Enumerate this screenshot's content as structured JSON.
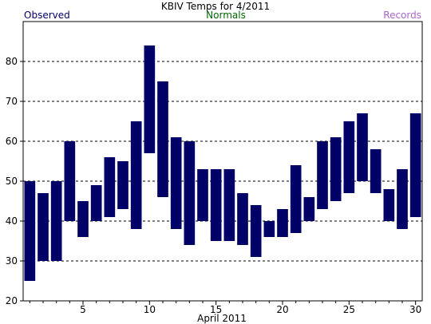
{
  "chart_data": {
    "type": "bar",
    "title": "KBIV Temps for 4/2011",
    "legend": [
      {
        "label": "Observed",
        "color": "#000066",
        "position": "top-left"
      },
      {
        "label": "Normals",
        "color": "#006600",
        "position": "top-center"
      },
      {
        "label": "Records",
        "color": "#aa66cc",
        "position": "top-right"
      }
    ],
    "xlabel": "April 2011",
    "ylabel": "",
    "xlim": [
      0.5,
      30.5
    ],
    "ylim": [
      20,
      90
    ],
    "x_ticks": [
      5,
      10,
      15,
      20,
      25,
      30
    ],
    "y_ticks": [
      20,
      30,
      40,
      50,
      60,
      70,
      80
    ],
    "grid": "horizontal dashed at 30-80",
    "bar_color": "#000066",
    "series": [
      {
        "days": [
          1,
          2,
          3,
          4,
          5,
          6,
          7,
          8,
          9,
          10,
          11,
          12,
          13,
          14,
          15,
          16,
          17,
          18,
          19,
          20,
          21,
          22,
          23,
          24,
          25,
          26,
          27,
          28,
          29,
          30
        ],
        "low": [
          25,
          30,
          30,
          40,
          36,
          40,
          41,
          43,
          38,
          57,
          46,
          38,
          34,
          40,
          35,
          35,
          34,
          31,
          36,
          36,
          37,
          40,
          43,
          45,
          47,
          50,
          47,
          40,
          38,
          41
        ],
        "high": [
          50,
          47,
          50,
          60,
          45,
          49,
          56,
          55,
          65,
          84,
          75,
          61,
          60,
          53,
          53,
          53,
          47,
          44,
          40,
          43,
          54,
          46,
          60,
          61,
          65,
          67,
          58,
          48,
          53,
          67
        ]
      }
    ]
  }
}
